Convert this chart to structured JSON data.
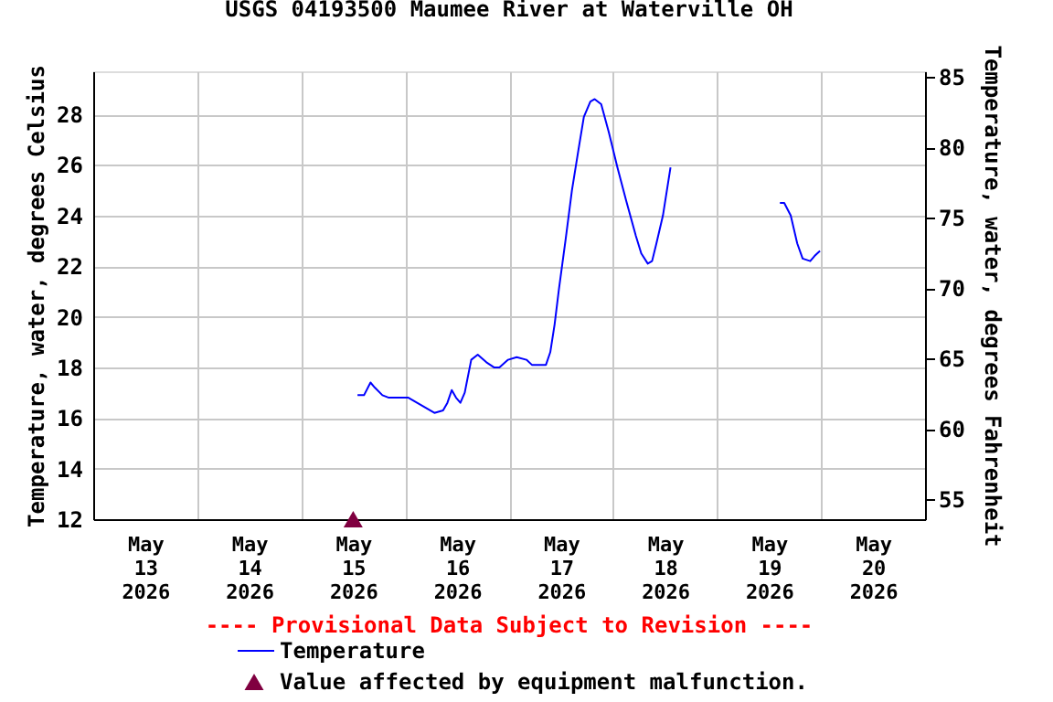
{
  "chart_data": {
    "type": "line",
    "title": "USGS 04193500 Maumee River at Waterville OH",
    "ylabel": "Temperature, water, degrees Celsius",
    "y2label": "Temperature, water, degrees Fahrenheit",
    "annotations": [
      "---- Provisional Data Subject to Revision ----"
    ],
    "xlim": [
      "2026-05-13T00:00",
      "2026-05-21T00:00"
    ],
    "xticks": [
      {
        "value": "2026-05-13T00:00",
        "label": null
      },
      {
        "value": "2026-05-13T12:00",
        "label": "May 13 2026"
      },
      {
        "value": "2026-05-14T00:00",
        "label": null
      },
      {
        "value": "2026-05-14T12:00",
        "label": "May 14 2026"
      },
      {
        "value": "2026-05-15T00:00",
        "label": null
      },
      {
        "value": "2026-05-15T12:00",
        "label": "May 15 2026"
      },
      {
        "value": "2026-05-16T00:00",
        "label": null
      },
      {
        "value": "2026-05-16T12:00",
        "label": "May 16 2026"
      },
      {
        "value": "2026-05-17T00:00",
        "label": null
      },
      {
        "value": "2026-05-17T12:00",
        "label": "May 17 2026"
      },
      {
        "value": "2026-05-18T00:00",
        "label": null
      },
      {
        "value": "2026-05-18T12:00",
        "label": "May 18 2026"
      },
      {
        "value": "2026-05-19T00:00",
        "label": null
      },
      {
        "value": "2026-05-19T12:00",
        "label": "May 19 2026"
      },
      {
        "value": "2026-05-20T00:00",
        "label": null
      },
      {
        "value": "2026-05-20T12:00",
        "label": "May 20 2026"
      },
      {
        "value": "2026-05-21T00:00",
        "label": null
      }
    ],
    "ylim": [
      12,
      29.7
    ],
    "yticks": [
      12,
      14,
      16,
      18,
      20,
      22,
      24,
      26,
      28
    ],
    "y2lim": [
      53.6,
      85.4
    ],
    "y2ticks": [
      55,
      60,
      65,
      70,
      75,
      80,
      85
    ],
    "grid": true,
    "legend": "bottom",
    "series": [
      {
        "name": "Temperature",
        "color": "#0000ff",
        "type": "line",
        "marker": "none",
        "x": [
          "2026-05-15T13:00",
          "2026-05-15T14:30",
          "2026-05-15T16:00",
          "2026-05-15T17:00",
          "2026-05-15T18:45",
          "2026-05-15T20:15",
          "2026-05-16T00:45",
          "2026-05-16T02:45",
          "2026-05-16T04:45",
          "2026-05-16T06:45",
          "2026-05-16T08:45",
          "2026-05-16T09:45",
          "2026-05-16T10:45",
          "2026-05-16T11:45",
          "2026-05-16T12:45",
          "2026-05-16T13:45",
          "2026-05-16T15:15",
          "2026-05-16T16:45",
          "2026-05-16T18:45",
          "2026-05-16T20:30",
          "2026-05-16T21:45",
          "2026-05-16T23:45",
          "2026-05-17T01:45",
          "2026-05-17T04:00",
          "2026-05-17T05:15",
          "2026-05-17T08:30",
          "2026-05-17T09:30",
          "2026-05-17T10:30",
          "2026-05-17T11:30",
          "2026-05-17T13:00",
          "2026-05-17T14:30",
          "2026-05-17T16:00",
          "2026-05-17T17:15",
          "2026-05-17T18:45",
          "2026-05-17T19:45",
          "2026-05-17T21:15",
          "2026-05-17T23:00",
          "2026-05-18T01:00",
          "2026-05-18T03:00",
          "2026-05-18T05:15",
          "2026-05-18T06:30",
          "2026-05-18T08:00",
          "2026-05-18T09:00",
          "2026-05-18T10:00",
          "2026-05-18T11:30",
          "2026-05-18T13:15",
          "2026-05-19T00:00",
          "2026-05-19T14:30",
          "2026-05-19T15:30",
          "2026-05-19T17:00",
          "2026-05-19T18:30",
          "2026-05-19T19:45",
          "2026-05-19T21:30",
          "2026-05-19T22:30",
          "2026-05-19T23:45"
        ],
        "values": [
          16.9,
          16.9,
          17.4,
          17.2,
          16.9,
          16.8,
          16.8,
          16.6,
          16.4,
          16.2,
          16.3,
          16.6,
          17.1,
          16.8,
          16.6,
          17.0,
          18.3,
          18.5,
          18.2,
          18.0,
          18.0,
          18.3,
          18.4,
          18.3,
          18.1,
          18.1,
          18.6,
          19.7,
          21.1,
          23.0,
          25.0,
          26.6,
          27.9,
          28.5,
          28.6,
          28.4,
          27.3,
          25.9,
          24.6,
          23.2,
          22.5,
          22.1,
          22.2,
          22.9,
          24.0,
          25.9,
          null,
          24.5,
          24.5,
          24.0,
          22.9,
          22.3,
          22.2,
          22.4,
          22.6
        ]
      },
      {
        "name": "Value affected by equipment malfunction.",
        "color": "#800040",
        "type": "scatter",
        "marker": "triangle",
        "x": [
          "2026-05-15T12:00"
        ],
        "values": [
          12.0
        ]
      }
    ]
  }
}
